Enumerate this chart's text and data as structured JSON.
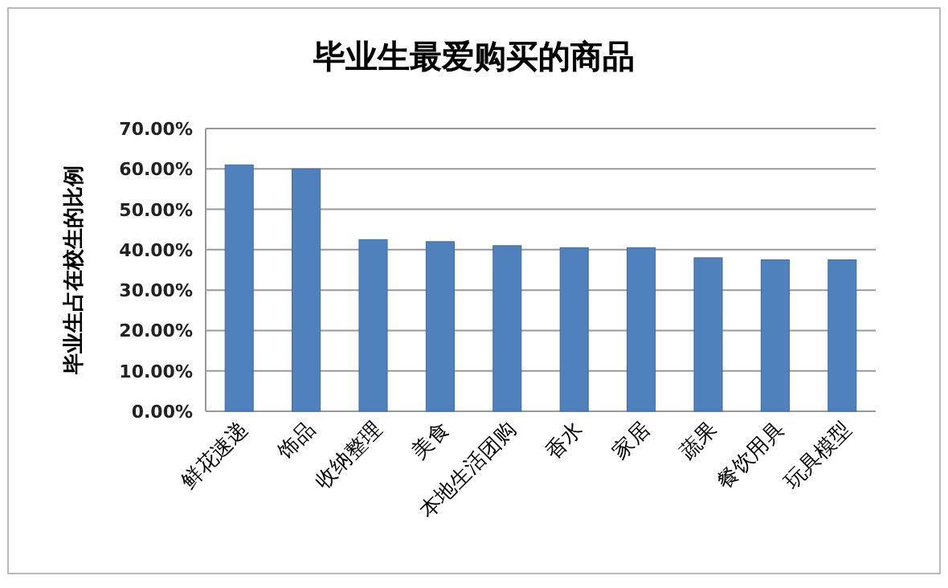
{
  "chart_data": {
    "type": "bar",
    "title": "毕业生最爱购买的商品",
    "ylabel": "毕业生占在校生的比例",
    "categories": [
      "鲜花速递",
      "饰品",
      "收纳整理",
      "美食",
      "本地生活团购",
      "香水",
      "家居",
      "蔬果",
      "餐饮用具",
      "玩具模型"
    ],
    "values": [
      61,
      60,
      42.5,
      42,
      41,
      40.5,
      40.5,
      38,
      37.5,
      37.5
    ],
    "color": "#4f81bd",
    "ylim": [
      0,
      70
    ],
    "yticks": [
      {
        "value": 0,
        "label": "0.00%"
      },
      {
        "value": 10,
        "label": "10.00%"
      },
      {
        "value": 20,
        "label": "20.00%"
      },
      {
        "value": 30,
        "label": "30.00%"
      },
      {
        "value": 40,
        "label": "40.00%"
      },
      {
        "value": 50,
        "label": "50.00%"
      },
      {
        "value": 60,
        "label": "60.00%"
      },
      {
        "value": 70,
        "label": "70.00%"
      }
    ],
    "grid": "y"
  }
}
